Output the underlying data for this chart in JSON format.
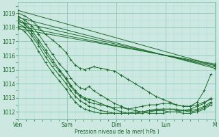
{
  "bg_color": "#cce8e0",
  "grid_color_major": "#88c8b8",
  "grid_color_minor": "#aaddd4",
  "line_color": "#1a6b2a",
  "xlabel": "Pression niveau de la mer( hPa )",
  "ylim": [
    1011.5,
    1019.8
  ],
  "yticks": [
    1012,
    1013,
    1014,
    1015,
    1016,
    1017,
    1018,
    1019
  ],
  "xlim": [
    0.0,
    4.3
  ],
  "xtick_labels": [
    "Ven",
    "Sam",
    "Dim",
    "Lun",
    "M"
  ],
  "xtick_positions": [
    0.0,
    1.07,
    2.14,
    3.21,
    4.28
  ],
  "fan_lines": [
    {
      "x": [
        0.0,
        4.28
      ],
      "y": [
        1019.2,
        1015.3
      ]
    },
    {
      "x": [
        0.0,
        4.28
      ],
      "y": [
        1018.7,
        1015.1
      ]
    },
    {
      "x": [
        0.0,
        4.28
      ],
      "y": [
        1018.4,
        1015.2
      ]
    },
    {
      "x": [
        0.0,
        4.28
      ],
      "y": [
        1018.1,
        1015.3
      ]
    },
    {
      "x": [
        0.0,
        4.28
      ],
      "y": [
        1017.9,
        1015.4
      ]
    }
  ],
  "wavy_lines": [
    [
      0.0,
      1019.0,
      0.15,
      1018.8,
      0.3,
      1018.5,
      0.45,
      1018.0,
      0.6,
      1017.5,
      0.75,
      1017.1,
      0.9,
      1016.7,
      1.05,
      1016.2,
      1.15,
      1015.7,
      1.25,
      1015.3,
      1.35,
      1015.1,
      1.45,
      1015.0,
      1.55,
      1015.1,
      1.65,
      1015.2,
      1.8,
      1015.1,
      1.95,
      1015.0,
      2.1,
      1014.9,
      2.25,
      1014.6,
      2.4,
      1014.3,
      2.55,
      1014.0,
      2.7,
      1013.7,
      2.85,
      1013.4,
      3.0,
      1013.1,
      3.15,
      1012.9,
      3.3,
      1012.7,
      3.45,
      1012.5,
      3.6,
      1012.4,
      3.75,
      1012.4,
      3.9,
      1012.5,
      4.05,
      1012.7,
      4.2,
      1012.9
    ],
    [
      0.0,
      1018.8,
      0.15,
      1018.5,
      0.3,
      1018.1,
      0.45,
      1017.5,
      0.6,
      1016.8,
      0.75,
      1016.1,
      0.9,
      1015.4,
      1.05,
      1014.9,
      1.15,
      1014.4,
      1.25,
      1014.0,
      1.35,
      1013.7,
      1.45,
      1013.6,
      1.55,
      1013.8,
      1.65,
      1013.5,
      1.8,
      1013.2,
      1.95,
      1012.9,
      2.1,
      1012.6,
      2.25,
      1012.4,
      2.4,
      1012.2,
      2.55,
      1012.1,
      2.7,
      1012.0,
      2.85,
      1011.9,
      3.0,
      1011.9,
      3.15,
      1011.9,
      3.3,
      1012.0,
      3.45,
      1012.0,
      3.6,
      1012.1,
      3.75,
      1012.2,
      3.9,
      1012.4,
      4.05,
      1012.6,
      4.2,
      1013.0
    ],
    [
      0.0,
      1018.6,
      0.15,
      1018.3,
      0.3,
      1017.8,
      0.45,
      1017.1,
      0.6,
      1016.4,
      0.75,
      1015.7,
      0.9,
      1015.0,
      1.05,
      1014.4,
      1.15,
      1013.9,
      1.25,
      1013.5,
      1.35,
      1013.2,
      1.45,
      1013.0,
      1.55,
      1012.9,
      1.65,
      1012.8,
      1.8,
      1012.6,
      1.95,
      1012.4,
      2.1,
      1012.2,
      2.25,
      1012.0,
      2.4,
      1011.9,
      2.55,
      1011.9,
      2.7,
      1011.9,
      2.85,
      1012.0,
      3.0,
      1012.1,
      3.15,
      1012.2,
      3.3,
      1012.2,
      3.45,
      1012.2,
      3.6,
      1012.1,
      3.75,
      1012.1,
      3.9,
      1012.2,
      4.05,
      1012.4,
      4.2,
      1012.7
    ],
    [
      0.0,
      1018.3,
      0.15,
      1018.0,
      0.3,
      1017.4,
      0.45,
      1016.7,
      0.6,
      1015.9,
      0.75,
      1015.2,
      0.9,
      1014.6,
      1.05,
      1014.0,
      1.15,
      1013.5,
      1.25,
      1013.1,
      1.35,
      1012.8,
      1.45,
      1012.6,
      1.55,
      1012.4,
      1.65,
      1012.3,
      1.8,
      1012.1,
      1.95,
      1012.0,
      2.1,
      1011.9,
      2.25,
      1011.9,
      2.4,
      1011.9,
      2.55,
      1011.9,
      2.7,
      1012.0,
      2.85,
      1012.1,
      3.0,
      1012.2,
      3.15,
      1012.2,
      3.3,
      1012.2,
      3.45,
      1012.1,
      3.6,
      1012.1,
      3.75,
      1012.0,
      3.9,
      1012.1,
      4.05,
      1012.3,
      4.2,
      1012.6
    ],
    [
      0.0,
      1018.0,
      0.15,
      1017.7,
      0.3,
      1017.1,
      0.45,
      1016.3,
      0.6,
      1015.5,
      0.75,
      1014.8,
      0.9,
      1014.2,
      1.05,
      1013.6,
      1.15,
      1013.1,
      1.25,
      1012.7,
      1.35,
      1012.4,
      1.45,
      1012.2,
      1.55,
      1012.1,
      1.65,
      1012.0,
      1.8,
      1011.9,
      1.95,
      1011.9,
      2.1,
      1011.9,
      2.25,
      1011.9,
      2.4,
      1011.9,
      2.55,
      1012.0,
      2.7,
      1012.0,
      2.85,
      1012.1,
      3.0,
      1012.1,
      3.15,
      1012.1,
      3.3,
      1012.0,
      3.45,
      1012.0,
      3.6,
      1011.9,
      3.75,
      1011.9,
      3.9,
      1012.0,
      4.05,
      1012.2,
      4.2,
      1012.5
    ],
    [
      0.0,
      1018.5,
      0.15,
      1018.2,
      0.3,
      1017.6,
      0.45,
      1016.9,
      0.6,
      1016.2,
      0.75,
      1015.5,
      0.9,
      1014.9,
      1.05,
      1014.3,
      1.15,
      1013.8,
      1.25,
      1013.4,
      1.35,
      1013.1,
      1.45,
      1012.9,
      1.55,
      1012.7,
      1.65,
      1012.6,
      1.8,
      1012.5,
      1.95,
      1012.4,
      2.1,
      1012.3,
      2.25,
      1012.3,
      2.4,
      1012.2,
      2.55,
      1012.3,
      2.7,
      1012.4,
      2.85,
      1012.5,
      3.0,
      1012.5,
      3.15,
      1012.6,
      3.3,
      1012.6,
      3.45,
      1012.5,
      3.6,
      1012.4,
      3.75,
      1012.4,
      3.9,
      1012.7,
      4.05,
      1013.5,
      4.2,
      1014.7
    ]
  ]
}
